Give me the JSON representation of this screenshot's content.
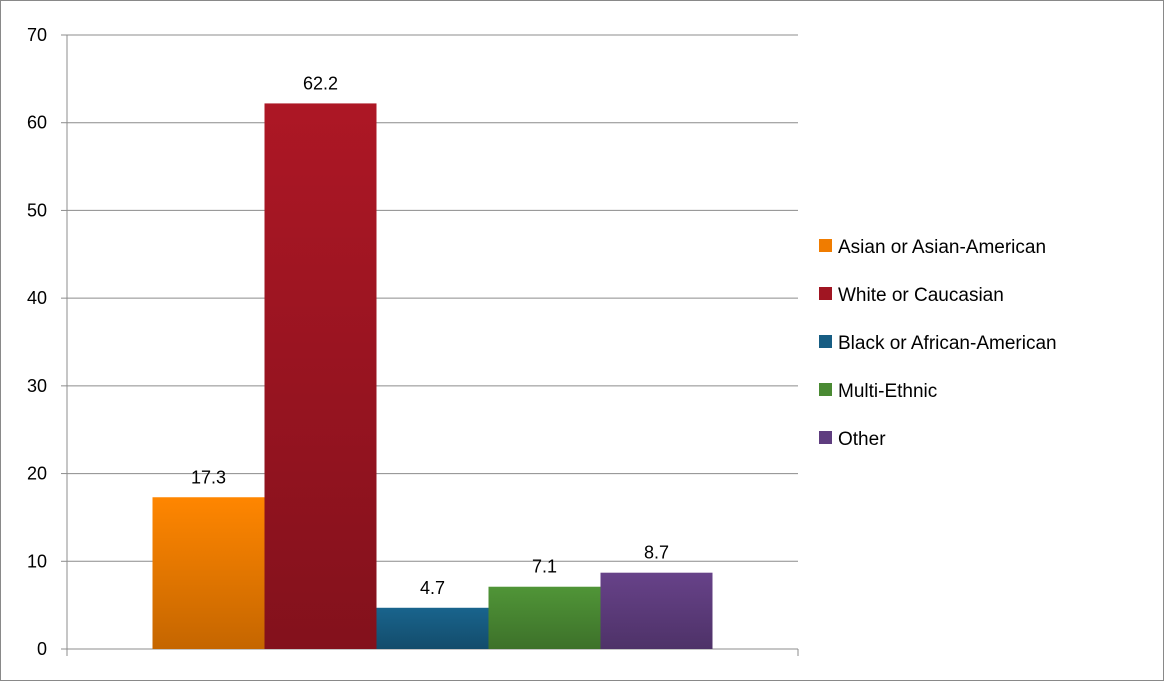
{
  "chart_data": {
    "type": "bar",
    "title": "",
    "xlabel": "",
    "ylabel": "",
    "ylim": [
      0,
      70
    ],
    "yticks": [
      0,
      10,
      20,
      30,
      40,
      50,
      60,
      70
    ],
    "grid": true,
    "legend_position": "right",
    "series": [
      {
        "name": "Asian or Asian-American",
        "value": 17.3,
        "label": "17.3",
        "color": "#f07c00"
      },
      {
        "name": "White or Caucasian",
        "value": 62.2,
        "label": "62.2",
        "color": "#a01522"
      },
      {
        "name": "Black or African-American",
        "value": 4.7,
        "label": "4.7",
        "color": "#175d83"
      },
      {
        "name": "Multi-Ethnic",
        "value": 7.1,
        "label": "7.1",
        "color": "#4a8a33"
      },
      {
        "name": "Other",
        "value": 8.7,
        "label": "8.7",
        "color": "#5f3d7f"
      }
    ]
  }
}
